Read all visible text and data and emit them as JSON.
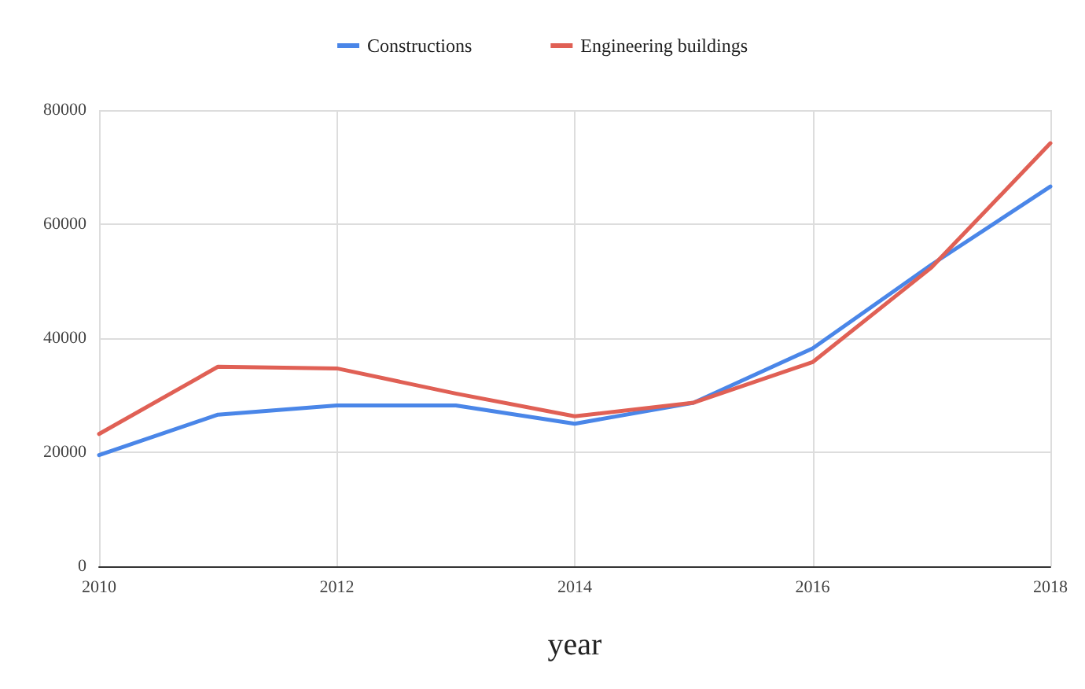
{
  "chart_data": {
    "type": "line",
    "xlabel": "year",
    "x": [
      2010,
      2011,
      2012,
      2013,
      2014,
      2015,
      2016,
      2017,
      2018
    ],
    "series": [
      {
        "name": "Constructions",
        "color": "#4a86e8",
        "values": [
          19500,
          26600,
          28200,
          28200,
          25000,
          28700,
          38200,
          52900,
          66600
        ]
      },
      {
        "name": "Engineering buildings",
        "color": "#e06055",
        "values": [
          23200,
          35000,
          34700,
          30300,
          26300,
          28700,
          35800,
          52400,
          74200
        ]
      }
    ],
    "xlim": [
      2010,
      2018
    ],
    "xticks": [
      2010,
      2012,
      2014,
      2016,
      2018
    ],
    "ylim": [
      0,
      80000
    ],
    "yticks": [
      0,
      20000,
      40000,
      60000,
      80000
    ],
    "grid": true,
    "legend": "top",
    "marker": "none",
    "line_style": "solid"
  }
}
